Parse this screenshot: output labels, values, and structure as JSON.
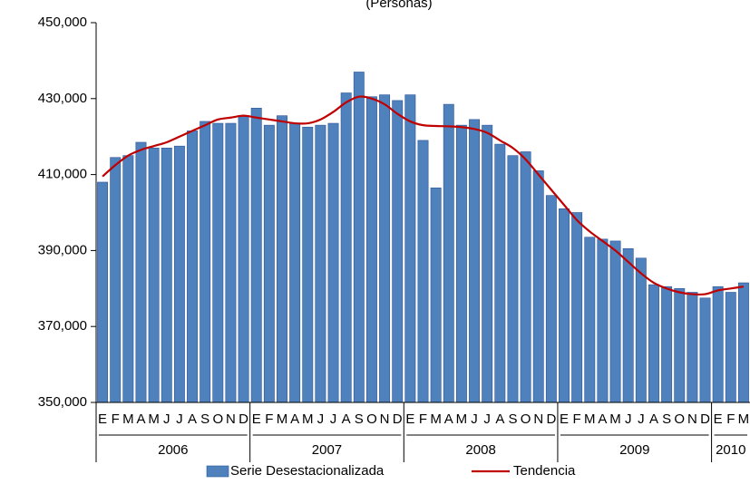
{
  "chart_data": {
    "type": "bar",
    "title": "(Personas)",
    "categories": [
      "E",
      "F",
      "M",
      "A",
      "M",
      "J",
      "J",
      "A",
      "S",
      "O",
      "N",
      "D",
      "E",
      "F",
      "M",
      "A",
      "M",
      "J",
      "J",
      "A",
      "S",
      "O",
      "N",
      "D",
      "E",
      "F",
      "M",
      "A",
      "M",
      "J",
      "J",
      "A",
      "S",
      "O",
      "N",
      "D",
      "E",
      "F",
      "M",
      "A",
      "M",
      "J",
      "J",
      "A",
      "S",
      "O",
      "N",
      "D",
      "E",
      "F",
      "M"
    ],
    "years": [
      "2006",
      "2007",
      "2008",
      "2009",
      "2010"
    ],
    "series": [
      {
        "name": "Serie Desestacionalizada",
        "color": "#4f81bd",
        "values": [
          408000,
          414500,
          415000,
          418500,
          417000,
          417000,
          417500,
          421500,
          424000,
          423500,
          423500,
          425500,
          427500,
          423000,
          425500,
          423500,
          422500,
          423000,
          423500,
          431500,
          437000,
          430500,
          431000,
          429500,
          431000,
          419000,
          406500,
          428500,
          423000,
          424500,
          423000,
          418000,
          415000,
          416000,
          411000,
          404500,
          401000,
          400000,
          393500,
          393000,
          392500,
          390500,
          388000,
          381000,
          380500,
          380000,
          379000,
          377500,
          380500,
          379000,
          381500
        ]
      },
      {
        "name": "Tendencia",
        "type": "line",
        "color": "#c00000",
        "values": [
          409500,
          412500,
          415000,
          416500,
          417500,
          418500,
          420000,
          421500,
          423000,
          424500,
          425000,
          425500,
          425000,
          424500,
          424000,
          423500,
          423500,
          424500,
          426500,
          429000,
          430500,
          430000,
          428500,
          426000,
          424000,
          423000,
          422800,
          422700,
          422500,
          422000,
          421000,
          419000,
          417000,
          414000,
          410000,
          406000,
          402000,
          398000,
          395000,
          392500,
          390000,
          387000,
          384000,
          381500,
          380000,
          379000,
          378500,
          378500,
          379500,
          380000,
          380500
        ]
      }
    ],
    "ylim": [
      350000,
      450000
    ],
    "yticks": [
      {
        "value": 350000,
        "label": "350,000"
      },
      {
        "value": 370000,
        "label": "370,000"
      },
      {
        "value": 390000,
        "label": "390,000"
      },
      {
        "value": 410000,
        "label": "410,000"
      },
      {
        "value": 430000,
        "label": "430,000"
      },
      {
        "value": 450000,
        "label": "450,000"
      }
    ],
    "grid": false
  }
}
